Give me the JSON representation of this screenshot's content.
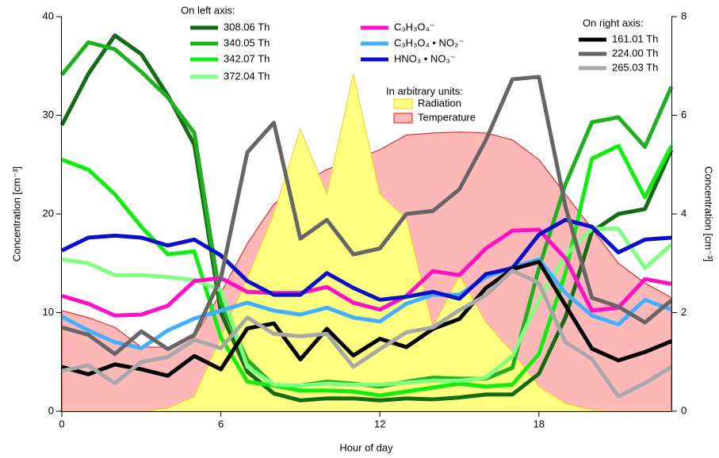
{
  "chart_data": {
    "type": "line",
    "x_label": "Hour of day",
    "y_label": "Concentration  [cm⁻³]",
    "y2_label": "Concentration  [cm⁻³]",
    "left_legend_title": "On left axis:",
    "right_legend_title": "On right axis:",
    "area_legend_title": "In arbitrary units:",
    "x": [
      0,
      1,
      2,
      3,
      4,
      5,
      6,
      7,
      8,
      9,
      10,
      11,
      12,
      13,
      14,
      15,
      16,
      17,
      18,
      19,
      20,
      21,
      22,
      23
    ],
    "xlim": [
      0,
      23
    ],
    "xticks": [
      0,
      6,
      12,
      18
    ],
    "ylim": [
      0,
      40
    ],
    "yticks": [
      0,
      10,
      20,
      30,
      40
    ],
    "y2lim": [
      0,
      8
    ],
    "y2ticks": [
      0,
      2,
      4,
      6,
      8
    ],
    "areas": [
      {
        "name": "Temperature",
        "color": "#ffb8b8",
        "edge": "#e8120c",
        "values": [
          10.2,
          9.5,
          8.5,
          6.5,
          6.5,
          7.5,
          12,
          17,
          21,
          23,
          24.5,
          25.5,
          26.5,
          28,
          28.2,
          28.3,
          28.2,
          27.5,
          25.5,
          22,
          18.5,
          15,
          13,
          11.5
        ]
      },
      {
        "name": "Radiation",
        "color": "#ffff80",
        "edge": "#f0d020",
        "values": [
          0,
          0,
          0,
          0,
          0.3,
          1.5,
          7.5,
          13.5,
          20,
          28.6,
          22,
          34.2,
          22,
          19.5,
          8.5,
          13.8,
          9,
          6,
          2.5,
          0.8,
          0.1,
          0,
          0,
          0
        ]
      }
    ],
    "series": [
      {
        "name": "308.06 Th",
        "color": "#136b13",
        "axis": "y",
        "values": [
          29,
          34.2,
          38.1,
          36.2,
          32,
          27,
          10,
          4,
          1.8,
          1.1,
          1.3,
          1.3,
          1.1,
          1.3,
          1.2,
          1.4,
          1.7,
          1.7,
          3.8,
          9.5,
          18.2,
          20,
          20.5,
          26.5
        ]
      },
      {
        "name": "340.05 Th",
        "color": "#1fb01f",
        "axis": "y",
        "values": [
          34.1,
          37.4,
          36.7,
          34.4,
          31.8,
          28.2,
          11,
          5.2,
          2.6,
          2.6,
          3,
          2.8,
          2.5,
          3,
          3.4,
          3.3,
          3.3,
          4.4,
          14.5,
          23,
          29.3,
          29.8,
          26.8,
          32.9
        ]
      },
      {
        "name": "342.07 Th",
        "color": "#10ee10",
        "axis": "y",
        "values": [
          25.5,
          24.5,
          22,
          18.7,
          15.9,
          16.2,
          7.5,
          3,
          2.6,
          2.1,
          2.1,
          2,
          1.6,
          2,
          2.4,
          2.8,
          2.5,
          2.7,
          5.8,
          14,
          25.6,
          26.9,
          21.7,
          26.9
        ]
      },
      {
        "name": "372.04 Th",
        "color": "#80ff80",
        "axis": "y",
        "values": [
          15.4,
          15,
          13.8,
          13.8,
          13.6,
          13.3,
          12.3,
          4.5,
          2.7,
          2.6,
          2.8,
          2.7,
          2.7,
          2.9,
          3.1,
          3.1,
          3.4,
          5.6,
          11.3,
          15.8,
          18.5,
          18.5,
          14.5,
          16.9
        ]
      },
      {
        "name": "C₃H₃O₄⁻",
        "color": "#ff10c8",
        "axis": "y",
        "values": [
          11.7,
          10.9,
          9.7,
          9.8,
          10.7,
          13.2,
          13.5,
          12.1,
          12,
          12,
          12.6,
          11,
          10.3,
          11.7,
          14.2,
          13.8,
          16.5,
          18.3,
          18.4,
          15.5,
          10.2,
          10.5,
          13.4,
          12.9
        ]
      },
      {
        "name": "C₃H₃O₄ • NO₃⁻",
        "color": "#40b0ff",
        "axis": "y",
        "values": [
          9.6,
          8.2,
          7,
          6.4,
          8.2,
          9.4,
          10.2,
          11,
          10.2,
          9.8,
          10.5,
          9.5,
          9.1,
          10.9,
          11.8,
          11.8,
          13.6,
          14.6,
          15.4,
          12,
          9.7,
          8.8,
          11.3,
          10.3
        ]
      },
      {
        "name": "HNO₃ • NO₃⁻",
        "color": "#0a10c8",
        "axis": "y",
        "values": [
          16.3,
          17.6,
          17.8,
          17.6,
          16.8,
          17.4,
          15.8,
          13.2,
          11.8,
          11.8,
          14,
          12.5,
          11.3,
          11.6,
          12.1,
          11.4,
          13.9,
          14.5,
          17.9,
          19.4,
          18.7,
          16.1,
          17.4,
          17.6
        ]
      },
      {
        "name": "161.01 Th",
        "color": "#000000",
        "axis": "y2",
        "values": [
          0.9,
          0.75,
          0.95,
          0.85,
          0.72,
          1.12,
          0.85,
          1.68,
          1.78,
          1.05,
          1.67,
          1.13,
          1.47,
          1.3,
          1.67,
          1.87,
          2.5,
          2.88,
          3.03,
          2.15,
          1.27,
          1.03,
          1.2,
          1.42
        ]
      },
      {
        "name": "224.00 Th",
        "color": "#666666",
        "axis": "y2",
        "values": [
          1.7,
          1.55,
          1.16,
          1.62,
          1.26,
          1.55,
          2.7,
          5.25,
          5.85,
          3.5,
          3.88,
          3.18,
          3.3,
          4,
          4.06,
          4.5,
          5.5,
          6.73,
          6.78,
          4.15,
          2.3,
          2.12,
          1.8,
          2.25
        ]
      },
      {
        "name": "265.03 Th",
        "color": "#a8a8a8",
        "axis": "y2",
        "values": [
          0.82,
          0.93,
          0.57,
          1,
          1.1,
          1.45,
          1.28,
          1.9,
          1.57,
          1.52,
          1.57,
          0.9,
          1.26,
          1.6,
          1.7,
          2.05,
          2.35,
          2.85,
          2.6,
          1.4,
          1.06,
          0.3,
          0.57,
          0.9
        ]
      }
    ]
  }
}
